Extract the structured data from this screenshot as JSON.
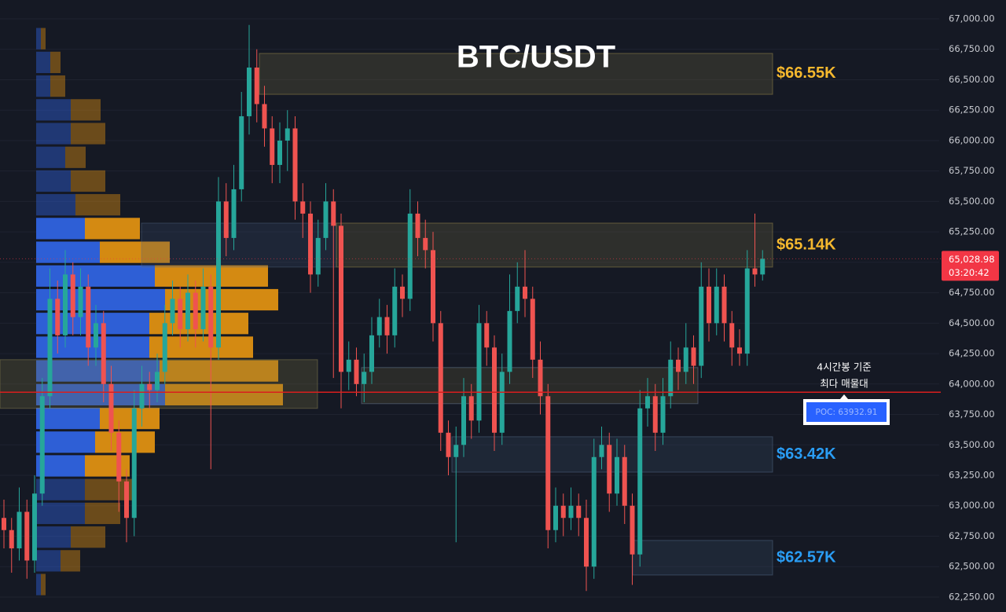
{
  "chart_data": {
    "type": "candlestick",
    "title": "BTC/USDT",
    "up_color": "#26a69a",
    "down_color": "#ef5350",
    "open": [
      62900,
      62800,
      62650,
      62950,
      62550,
      63100,
      63900,
      64700,
      64400,
      64900,
      64550,
      64800,
      64300,
      64500,
      64000,
      63600,
      63200,
      62900,
      63800,
      64000,
      63950,
      64100,
      64500,
      64700,
      64450,
      64750,
      64450,
      64800,
      64300,
      65500,
      65200,
      65600,
      66200,
      66600,
      66300,
      66100,
      65800,
      66000,
      66100,
      65500,
      65400,
      64900,
      65200,
      65500,
      65300,
      64100,
      64200,
      64000,
      64100,
      64400,
      64550,
      64400,
      64800,
      64700,
      65400,
      65200,
      65100,
      64500,
      63600,
      63400,
      63500,
      63900,
      63700,
      64500,
      64300,
      63600,
      64100,
      64600,
      64800,
      64700,
      64200,
      63900,
      62800,
      63000,
      62900,
      63000,
      62900,
      62500,
      63400,
      63500,
      63100,
      63400,
      63000,
      62600,
      63800,
      63900,
      63600,
      63900,
      64200,
      64100,
      64300,
      64150,
      64800,
      64500,
      64800,
      64500,
      64300,
      64250,
      64950,
      64900
    ],
    "high": [
      63050,
      62900,
      63150,
      63050,
      63250,
      64050,
      64950,
      64850,
      65100,
      65000,
      64950,
      64900,
      64650,
      64600,
      64150,
      63700,
      63300,
      63950,
      64150,
      64100,
      64250,
      64650,
      64850,
      64800,
      64900,
      64850,
      64950,
      64900,
      65700,
      65650,
      65800,
      66400,
      66950,
      66750,
      66450,
      66200,
      66150,
      66250,
      66200,
      65650,
      65500,
      65350,
      65650,
      65600,
      65400,
      64350,
      64300,
      64250,
      64550,
      64700,
      64650,
      64950,
      64900,
      65600,
      65500,
      65350,
      65250,
      64600,
      63700,
      63650,
      64050,
      64000,
      64650,
      64600,
      64400,
      64250,
      64900,
      65000,
      65100,
      64800,
      64350,
      64000,
      63150,
      63100,
      63150,
      63100,
      63050,
      63550,
      63650,
      63600,
      63550,
      63500,
      63100,
      63950,
      64050,
      64000,
      64050,
      64350,
      64300,
      64500,
      64400,
      65000,
      64950,
      64950,
      64900,
      64600,
      64450,
      65100,
      65400,
      65100
    ],
    "low": [
      62650,
      62450,
      62550,
      62400,
      62450,
      63000,
      63800,
      64250,
      64300,
      64400,
      64400,
      64150,
      64150,
      63850,
      63450,
      62950,
      62700,
      62750,
      63650,
      63800,
      63850,
      64000,
      64400,
      64300,
      64350,
      64300,
      64350,
      63300,
      64200,
      65050,
      65100,
      65500,
      66050,
      66150,
      65950,
      65650,
      65650,
      65750,
      65350,
      65200,
      64750,
      64800,
      65100,
      64050,
      63800,
      63950,
      63900,
      63850,
      64000,
      64300,
      64250,
      64300,
      64550,
      64600,
      65050,
      64950,
      64350,
      63450,
      63250,
      62700,
      63400,
      63550,
      63600,
      64150,
      63450,
      63500,
      64000,
      64500,
      64550,
      64050,
      63750,
      62650,
      62700,
      62750,
      62800,
      62750,
      62300,
      62400,
      63300,
      62950,
      63000,
      62850,
      62350,
      62500,
      63650,
      63450,
      63500,
      63800,
      63950,
      64000,
      64000,
      64050,
      64350,
      64400,
      64350,
      64150,
      64150,
      64150,
      64800,
      64850
    ],
    "close": [
      62800,
      62650,
      62950,
      62550,
      63100,
      63900,
      64700,
      64400,
      64900,
      64550,
      64800,
      64300,
      64500,
      64000,
      63600,
      63200,
      62900,
      63800,
      64000,
      63950,
      64100,
      64500,
      64700,
      64450,
      64750,
      64450,
      64800,
      64300,
      65500,
      65200,
      65600,
      66200,
      66600,
      66300,
      66100,
      65800,
      66000,
      66100,
      65500,
      65400,
      64900,
      65200,
      65500,
      65300,
      64100,
      64200,
      64000,
      64100,
      64400,
      64550,
      64400,
      64800,
      64700,
      65400,
      65200,
      65100,
      64500,
      63600,
      63400,
      63500,
      63900,
      63700,
      64500,
      64300,
      63600,
      64100,
      64600,
      64800,
      64700,
      64200,
      63900,
      62800,
      63000,
      62900,
      63000,
      62900,
      62500,
      63400,
      63500,
      63100,
      63400,
      63000,
      62600,
      63800,
      63900,
      63600,
      63900,
      64200,
      64100,
      64300,
      64150,
      64800,
      64500,
      64800,
      64500,
      64300,
      64250,
      64950,
      64900,
      65028.98
    ],
    "ylim": [
      62127,
      67155
    ],
    "yticks": [
      {
        "value": 62250,
        "label": "62,250.00"
      },
      {
        "value": 62500,
        "label": "62,500.00"
      },
      {
        "value": 62750,
        "label": "62,750.00"
      },
      {
        "value": 63000,
        "label": "63,000.00"
      },
      {
        "value": 63250,
        "label": "63,250.00"
      },
      {
        "value": 63500,
        "label": "63,500.00"
      },
      {
        "value": 63750,
        "label": "63,750.00"
      },
      {
        "value": 64000,
        "label": "64,000.00"
      },
      {
        "value": 64250,
        "label": "64,250.00"
      },
      {
        "value": 64500,
        "label": "64,500.00"
      },
      {
        "value": 64750,
        "label": "64,750.00"
      },
      {
        "value": 65000,
        "label": "65,000.00"
      },
      {
        "value": 65250,
        "label": "65,250.00"
      },
      {
        "value": 65500,
        "label": "65,500.00"
      },
      {
        "value": 65750,
        "label": "65,750.00"
      },
      {
        "value": 66000,
        "label": "66,000.00"
      },
      {
        "value": 66250,
        "label": "66,250.00"
      },
      {
        "value": 66500,
        "label": "66,500.00"
      },
      {
        "value": 66750,
        "label": "66,750.00"
      },
      {
        "value": 67000,
        "label": "67,000.00"
      }
    ],
    "grid": true,
    "last_price": {
      "value": 65028.98,
      "label": "65,028.98",
      "countdown": "03:20:42",
      "color": "#f23645"
    },
    "zones": [
      {
        "from": 66380,
        "to": 66716,
        "level": 66550,
        "label": "$66.55K",
        "color": "#f5b82e"
      },
      {
        "from": 64961,
        "to": 65322,
        "level": 65140,
        "label": "$65.14K",
        "color": "#f5b82e"
      },
      {
        "from": 63276,
        "to": 63567,
        "level": 63420,
        "label": "$63.42K",
        "color": "#2a9df4"
      },
      {
        "from": 62431,
        "to": 62715,
        "level": 62570,
        "label": "$62.57K",
        "color": "#2a9df4"
      }
    ],
    "poc": 63932.91,
    "poc_label": "POC: 63932.91",
    "poc_color": "#d91e1e",
    "poc_zone": [
      63800,
      64200
    ],
    "annotation": [
      "4시간봉 기준",
      "최다 매물대"
    ],
    "volume_profile": {
      "bins": [
        62255,
        62450,
        62645,
        62840,
        63035,
        63230,
        63425,
        63620,
        63815,
        64010,
        64205,
        64400,
        64595,
        64790,
        64985,
        65180,
        65375,
        65570,
        65765,
        65960,
        66155,
        66350,
        66545,
        66740,
        66935
      ],
      "buy": [
        6,
        31,
        44,
        62,
        62,
        62,
        75,
        81,
        164,
        157,
        144,
        144,
        164,
        151,
        81,
        62,
        50,
        44,
        37,
        44,
        44,
        18,
        18,
        6
      ],
      "sell": [
        6,
        25,
        44,
        45,
        64,
        57,
        76,
        76,
        150,
        151,
        132,
        126,
        144,
        144,
        89,
        70,
        57,
        44,
        26,
        44,
        38,
        19,
        13,
        6
      ],
      "buy_color": "#2e5fd6",
      "sell_color": "#d48a12",
      "value_area": [
        63230,
        65375
      ]
    }
  }
}
